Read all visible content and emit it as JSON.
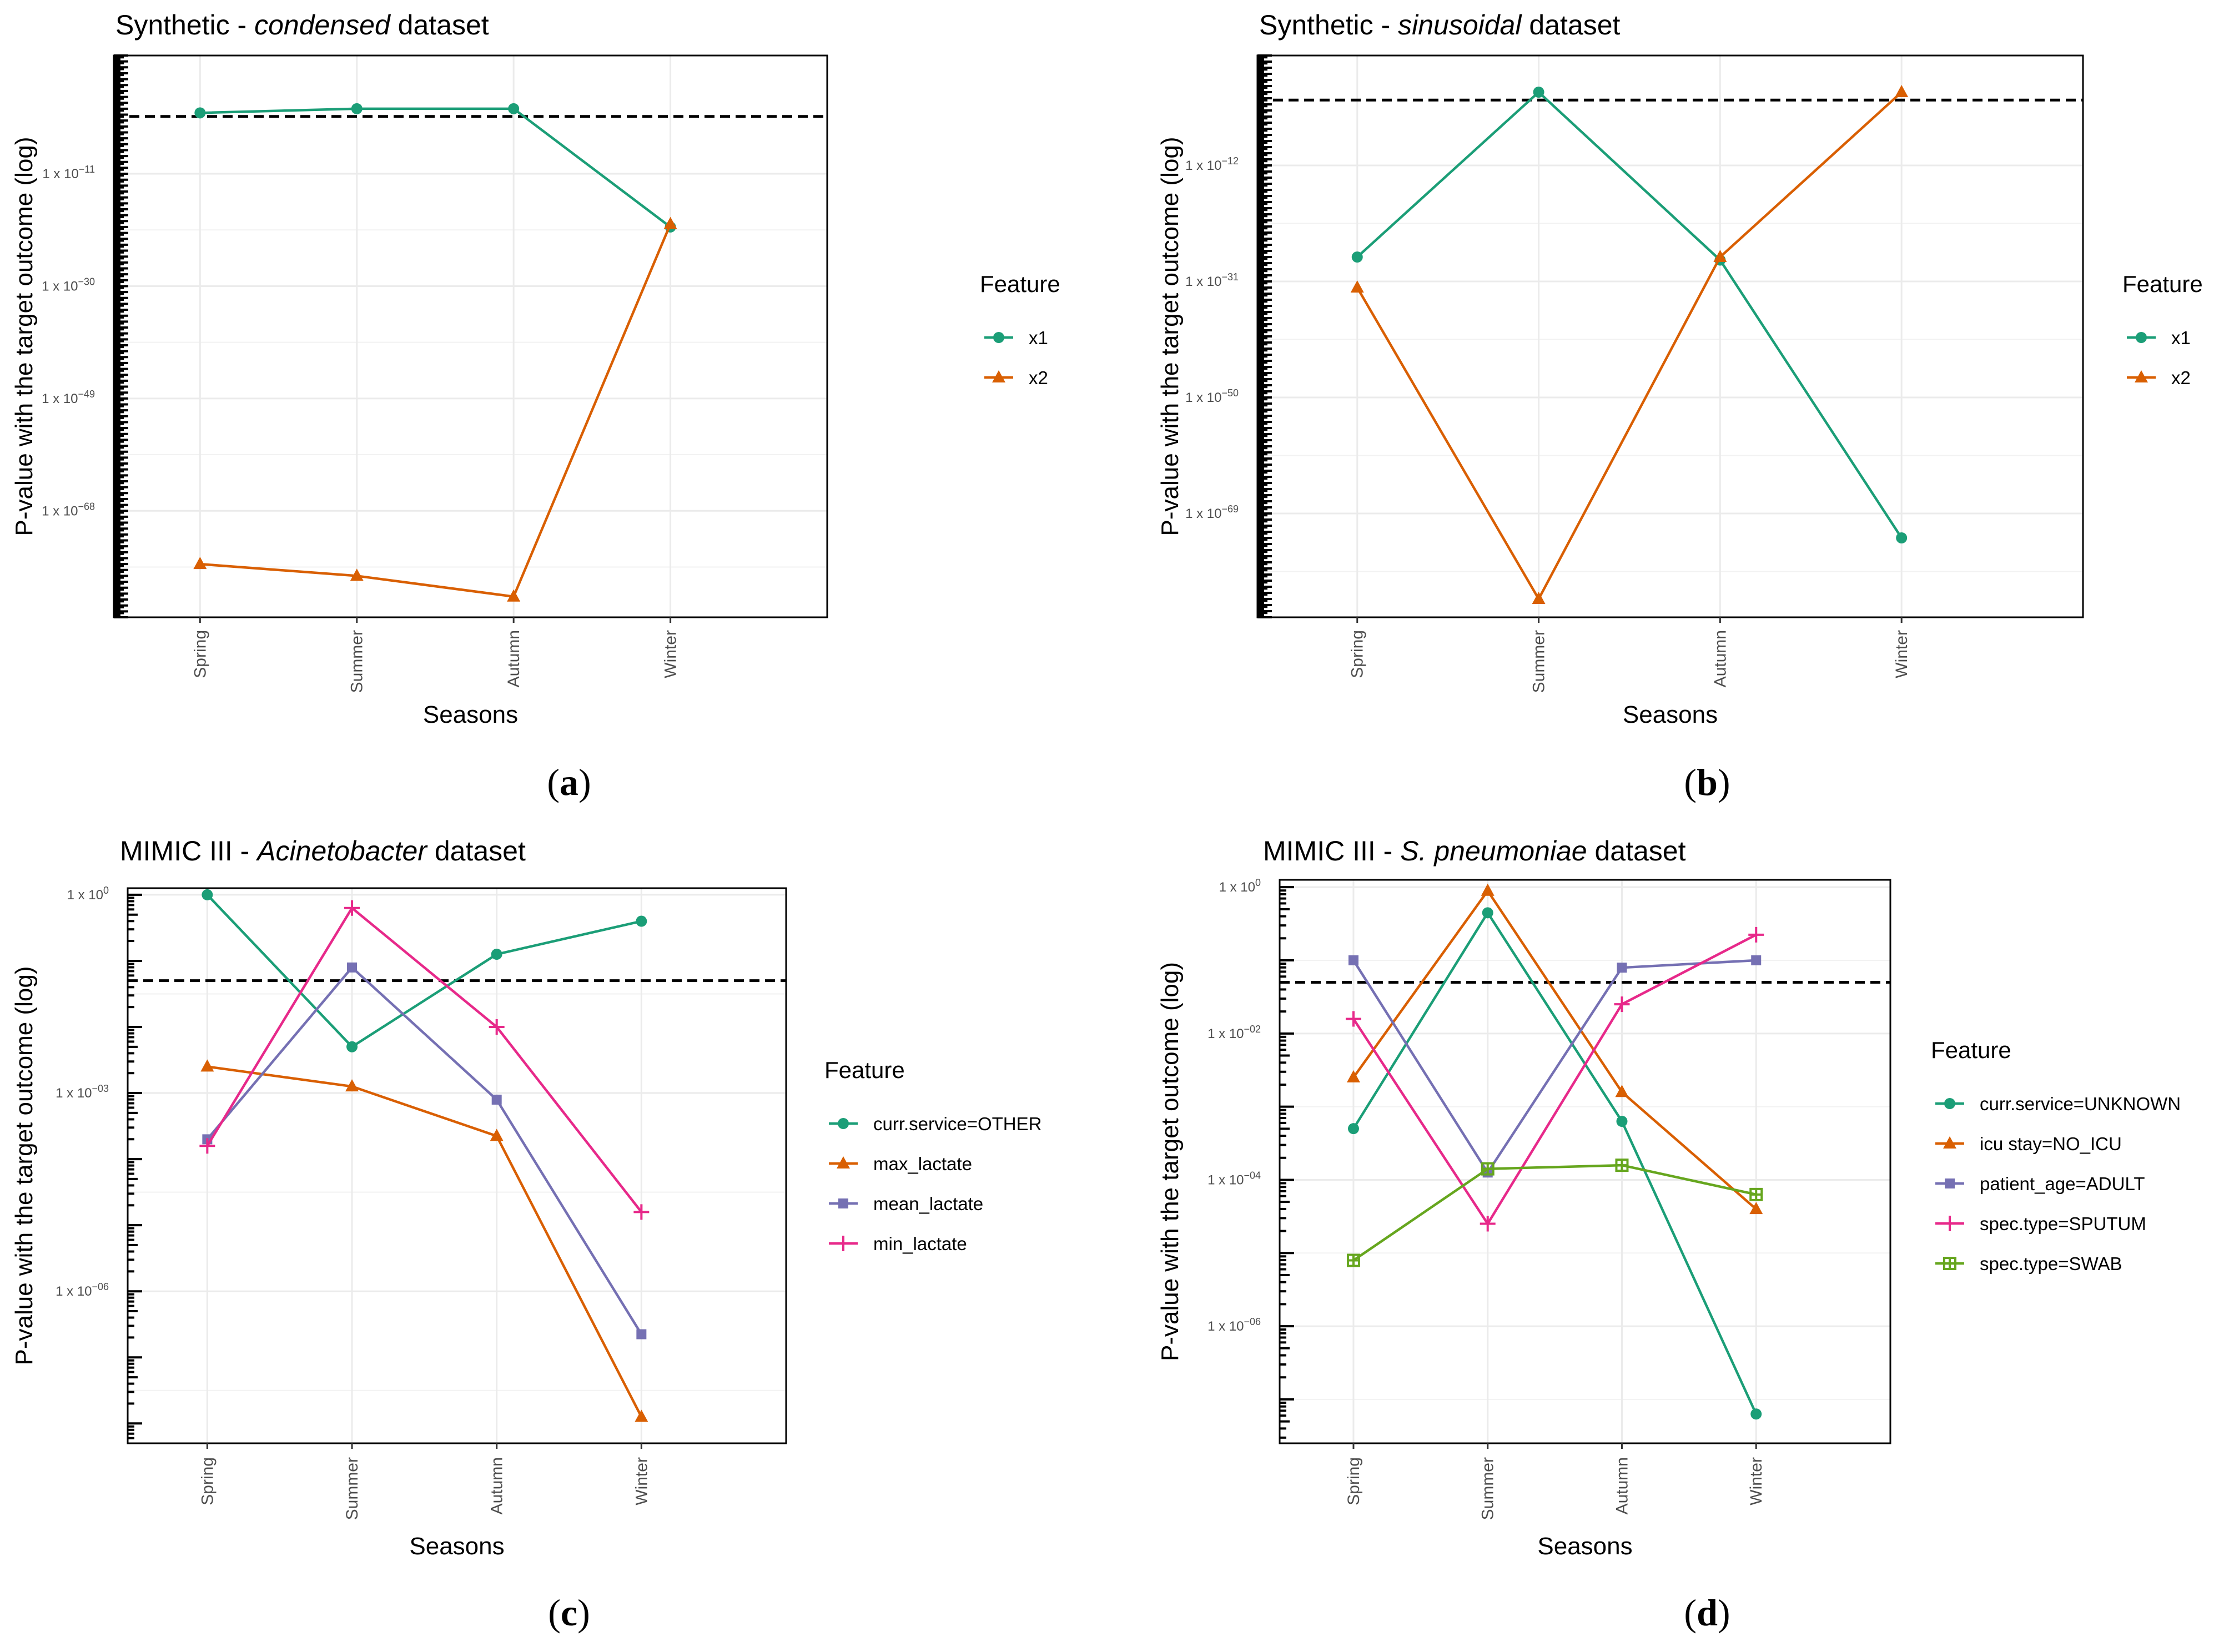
{
  "colors": {
    "c1": "#1b9e77",
    "c2": "#d95f02",
    "c3": "#7570b3",
    "c4": "#e7298a",
    "c5": "#66a61e"
  },
  "chart_data": [
    {
      "panel": "(a)",
      "type": "line",
      "title_prefix": "Synthetic - ",
      "title_italic": "condensed",
      "title_suffix": " dataset",
      "xlabel": "Seasons",
      "ylabel": "P-value with the target outcome (log)",
      "scale": "log10",
      "ylim_exp": [
        -86,
        9
      ],
      "yticks": [
        {
          "exp": -11,
          "label": "1 x 10",
          "sup": "−11"
        },
        {
          "exp": -30,
          "label": "1 x 10",
          "sup": "−30"
        },
        {
          "exp": -49,
          "label": "1 x 10",
          "sup": "−49"
        },
        {
          "exp": -68,
          "label": "1 x 10",
          "sup": "−68"
        }
      ],
      "threshold_exp": -1.3,
      "categories": [
        "Spring",
        "Summer",
        "Autumn",
        "Winter"
      ],
      "legend_title": "Feature",
      "series": [
        {
          "name": "x1",
          "color_key": "c1",
          "marker": "circle",
          "exp": [
            -0.7,
            0,
            0,
            -20
          ]
        },
        {
          "name": "x2",
          "color_key": "c2",
          "marker": "triangle",
          "exp": [
            -77,
            -79,
            -82.5,
            -19.5
          ]
        }
      ]
    },
    {
      "panel": "(b)",
      "type": "line",
      "title_prefix": "Synthetic - ",
      "title_italic": "sinusoidal",
      "title_suffix": " dataset",
      "xlabel": "Seasons",
      "ylabel": "P-value with the target outcome (log)",
      "scale": "log10",
      "ylim_exp": [
        -86,
        6
      ],
      "yticks": [
        {
          "exp": -12,
          "label": "1 x 10",
          "sup": "−12"
        },
        {
          "exp": -31,
          "label": "1 x 10",
          "sup": "−31"
        },
        {
          "exp": -50,
          "label": "1 x 10",
          "sup": "−50"
        },
        {
          "exp": -69,
          "label": "1 x 10",
          "sup": "−69"
        }
      ],
      "threshold_exp": -1.3,
      "categories": [
        "Spring",
        "Summer",
        "Autumn",
        "Winter"
      ],
      "legend_title": "Feature",
      "series": [
        {
          "name": "x1",
          "color_key": "c1",
          "marker": "circle",
          "exp": [
            -27,
            0,
            -27.5,
            -73
          ]
        },
        {
          "name": "x2",
          "color_key": "c2",
          "marker": "triangle",
          "exp": [
            -32,
            -83,
            -27,
            0
          ]
        }
      ]
    },
    {
      "panel": "(c)",
      "type": "line",
      "title_prefix": "MIMIC III - ",
      "title_italic": "Acinetobacter",
      "title_suffix": " dataset",
      "xlabel": "Seasons",
      "ylabel": "P-value with the target outcome (log)",
      "scale": "log10",
      "ylim_exp": [
        -8.3,
        0.1
      ],
      "yticks": [
        {
          "exp": 0,
          "label": "1 x 10",
          "sup": "0"
        },
        {
          "exp": -3,
          "label": "1 x 10",
          "sup": "−03"
        },
        {
          "exp": -6,
          "label": "1 x 10",
          "sup": "−06"
        }
      ],
      "threshold_exp": -1.3,
      "categories": [
        "Spring",
        "Summer",
        "Autumn",
        "Winter"
      ],
      "legend_title": "Feature",
      "series": [
        {
          "name": "curr.service=OTHER",
          "color_key": "c1",
          "marker": "circle",
          "exp": [
            0,
            -2.3,
            -0.9,
            -0.4
          ]
        },
        {
          "name": "max_lactate",
          "color_key": "c2",
          "marker": "triangle",
          "exp": [
            -2.6,
            -2.9,
            -3.65,
            -7.9
          ]
        },
        {
          "name": "mean_lactate",
          "color_key": "c3",
          "marker": "square",
          "exp": [
            -3.7,
            -1.1,
            -3.1,
            -6.65
          ]
        },
        {
          "name": "min_lactate",
          "color_key": "c4",
          "marker": "plus",
          "exp": [
            -3.8,
            -0.2,
            -2.0,
            -4.8
          ]
        }
      ]
    },
    {
      "panel": "(d)",
      "type": "line",
      "title_prefix": "MIMIC III - ",
      "title_italic": "S. pneumoniae",
      "title_suffix": " dataset",
      "xlabel": "Seasons",
      "ylabel": "P-value with the target outcome (log)",
      "scale": "log10",
      "ylim_exp": [
        -7.6,
        0.1
      ],
      "yticks": [
        {
          "exp": 0,
          "label": "1 x 10",
          "sup": "0"
        },
        {
          "exp": -2,
          "label": "1 x 10",
          "sup": "−02"
        },
        {
          "exp": -4,
          "label": "1 x 10",
          "sup": "−04"
        },
        {
          "exp": -6,
          "label": "1 x 10",
          "sup": "−06"
        }
      ],
      "threshold_exp": -1.3,
      "categories": [
        "Spring",
        "Summer",
        "Autumn",
        "Winter"
      ],
      "legend_title": "Feature",
      "series": [
        {
          "name": "curr.service=UNKNOWN",
          "color_key": "c1",
          "marker": "circle",
          "exp": [
            -3.3,
            -0.35,
            -3.2,
            -7.2
          ]
        },
        {
          "name": "icu stay=NO_ICU",
          "color_key": "c2",
          "marker": "triangle",
          "exp": [
            -2.6,
            -0.05,
            -2.8,
            -4.4
          ]
        },
        {
          "name": "patient_age=ADULT",
          "color_key": "c3",
          "marker": "square",
          "exp": [
            -1.0,
            -3.9,
            -1.1,
            -1.0
          ]
        },
        {
          "name": "spec.type=SPUTUM",
          "color_key": "c4",
          "marker": "plus",
          "exp": [
            -1.8,
            -4.6,
            -1.6,
            -0.65
          ]
        },
        {
          "name": "spec.type=SWAB",
          "color_key": "c5",
          "marker": "squarecross",
          "exp": [
            -5.1,
            -3.85,
            -3.8,
            -4.2
          ]
        }
      ]
    }
  ]
}
